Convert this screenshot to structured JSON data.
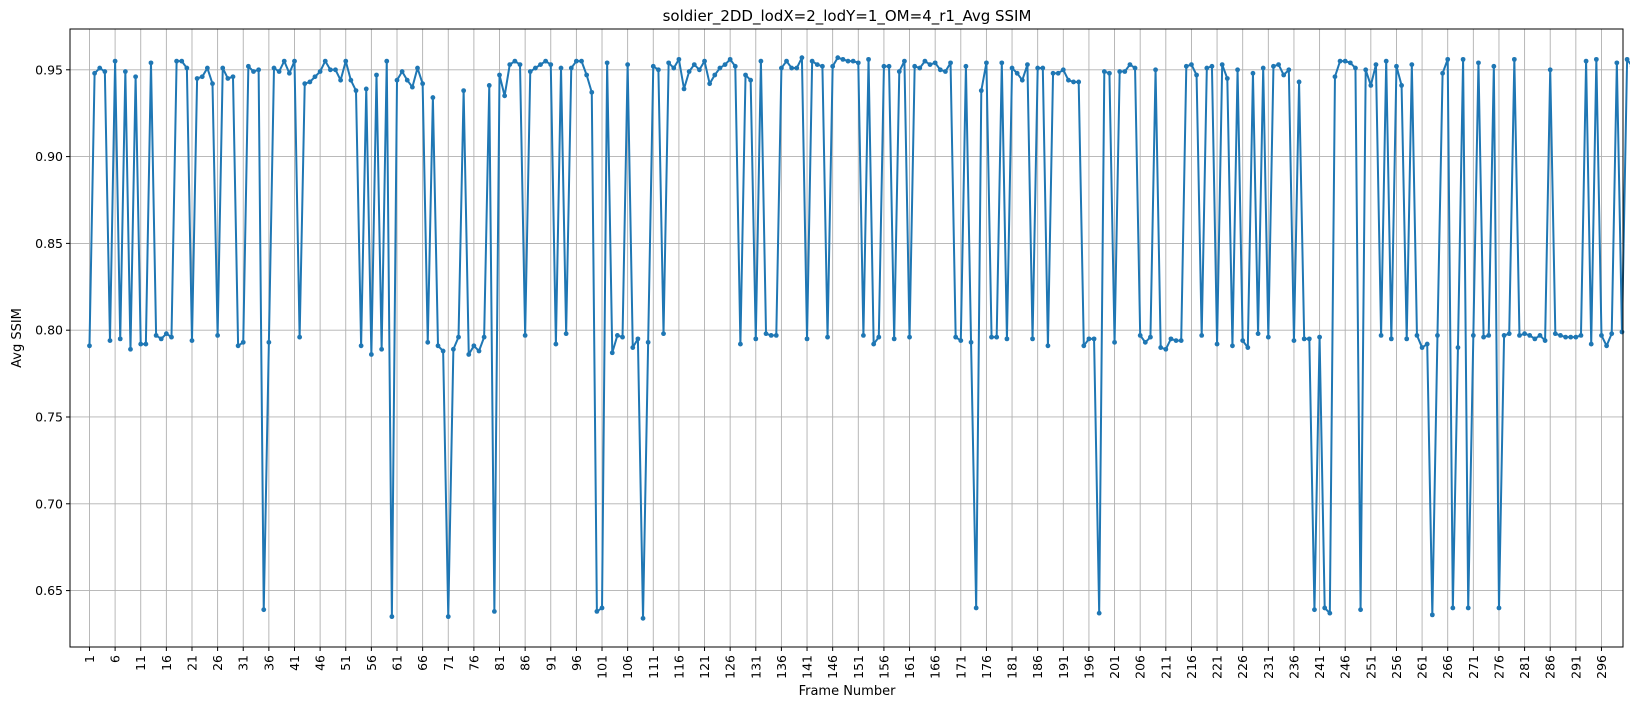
{
  "chart_data": {
    "type": "line",
    "title": "soldier_2DD_lodX=2_lodY=1_OM=4_r1_Avg SSIM",
    "xlabel": "Frame Number",
    "ylabel": "Avg SSIM",
    "grid": true,
    "xlim": [
      -2.8,
      300.2
    ],
    "ylim": [
      0.6175,
      0.9735
    ],
    "xticks": [
      1,
      6,
      11,
      16,
      21,
      26,
      31,
      36,
      41,
      46,
      51,
      56,
      61,
      66,
      71,
      76,
      81,
      86,
      91,
      96,
      101,
      106,
      111,
      116,
      121,
      126,
      131,
      136,
      141,
      146,
      151,
      156,
      161,
      166,
      171,
      176,
      181,
      186,
      191,
      196,
      201,
      206,
      211,
      216,
      221,
      226,
      231,
      236,
      241,
      246,
      251,
      256,
      261,
      266,
      271,
      276,
      281,
      286,
      291,
      296
    ],
    "yticks": [
      "0.65",
      "0.70",
      "0.75",
      "0.80",
      "0.85",
      "0.90",
      "0.95"
    ],
    "ytick_values": [
      0.65,
      0.7,
      0.75,
      0.8,
      0.85,
      0.9,
      0.95
    ],
    "series": [
      {
        "color": "#1f77b4",
        "x_start": 1,
        "values": [
          0.791,
          0.948,
          0.951,
          0.949,
          0.794,
          0.955,
          0.795,
          0.949,
          0.789,
          0.946,
          0.792,
          0.792,
          0.954,
          0.797,
          0.795,
          0.798,
          0.796,
          0.955,
          0.955,
          0.951,
          0.794,
          0.945,
          0.946,
          0.951,
          0.942,
          0.797,
          0.951,
          0.945,
          0.946,
          0.791,
          0.793,
          0.952,
          0.949,
          0.95,
          0.639,
          0.793,
          0.951,
          0.949,
          0.955,
          0.948,
          0.955,
          0.796,
          0.942,
          0.943,
          0.946,
          0.949,
          0.955,
          0.95,
          0.95,
          0.944,
          0.955,
          0.944,
          0.938,
          0.791,
          0.939,
          0.786,
          0.947,
          0.789,
          0.955,
          0.635,
          0.944,
          0.949,
          0.944,
          0.94,
          0.951,
          0.942,
          0.793,
          0.934,
          0.791,
          0.788,
          0.635,
          0.789,
          0.796,
          0.938,
          0.786,
          0.791,
          0.788,
          0.796,
          0.941,
          0.638,
          0.947,
          0.935,
          0.953,
          0.955,
          0.953,
          0.797,
          0.949,
          0.951,
          0.953,
          0.955,
          0.953,
          0.792,
          0.951,
          0.798,
          0.951,
          0.955,
          0.955,
          0.947,
          0.937,
          0.638,
          0.64,
          0.954,
          0.787,
          0.797,
          0.796,
          0.953,
          0.79,
          0.795,
          0.634,
          0.793,
          0.952,
          0.95,
          0.798,
          0.954,
          0.951,
          0.956,
          0.939,
          0.949,
          0.953,
          0.95,
          0.955,
          0.942,
          0.947,
          0.951,
          0.953,
          0.956,
          0.952,
          0.792,
          0.947,
          0.944,
          0.795,
          0.955,
          0.798,
          0.797,
          0.797,
          0.951,
          0.955,
          0.951,
          0.951,
          0.957,
          0.795,
          0.955,
          0.953,
          0.952,
          0.796,
          0.952,
          0.957,
          0.956,
          0.955,
          0.955,
          0.954,
          0.797,
          0.956,
          0.792,
          0.796,
          0.952,
          0.952,
          0.795,
          0.949,
          0.955,
          0.796,
          0.952,
          0.951,
          0.955,
          0.953,
          0.954,
          0.95,
          0.949,
          0.954,
          0.796,
          0.794,
          0.952,
          0.793,
          0.64,
          0.938,
          0.954,
          0.796,
          0.796,
          0.954,
          0.795,
          0.951,
          0.948,
          0.944,
          0.953,
          0.795,
          0.951,
          0.951,
          0.791,
          0.948,
          0.948,
          0.95,
          0.944,
          0.943,
          0.943,
          0.791,
          0.795,
          0.795,
          0.637,
          0.949,
          0.948,
          0.793,
          0.949,
          0.949,
          0.953,
          0.951,
          0.797,
          0.793,
          0.796,
          0.95,
          0.79,
          0.789,
          0.795,
          0.794,
          0.794,
          0.952,
          0.953,
          0.947,
          0.797,
          0.951,
          0.952,
          0.792,
          0.953,
          0.945,
          0.791,
          0.95,
          0.794,
          0.79,
          0.948,
          0.798,
          0.951,
          0.796,
          0.952,
          0.953,
          0.947,
          0.95,
          0.794,
          0.943,
          0.795,
          0.795,
          0.639,
          0.796,
          0.64,
          0.637,
          0.946,
          0.955,
          0.955,
          0.954,
          0.951,
          0.639,
          0.95,
          0.941,
          0.953,
          0.797,
          0.955,
          0.795,
          0.952,
          0.941,
          0.795,
          0.953,
          0.797,
          0.79,
          0.792,
          0.636,
          0.797,
          0.948,
          0.956,
          0.64,
          0.79,
          0.956,
          0.64,
          0.797,
          0.954,
          0.796,
          0.797,
          0.952,
          0.64,
          0.797,
          0.798,
          0.956,
          0.797,
          0.798,
          0.797,
          0.795,
          0.797,
          0.794,
          0.95,
          0.798,
          0.797,
          0.796,
          0.796,
          0.796,
          0.797,
          0.955,
          0.792,
          0.956,
          0.797,
          0.791,
          0.798,
          0.954,
          0.799,
          0.956,
          0.952
        ]
      }
    ]
  }
}
